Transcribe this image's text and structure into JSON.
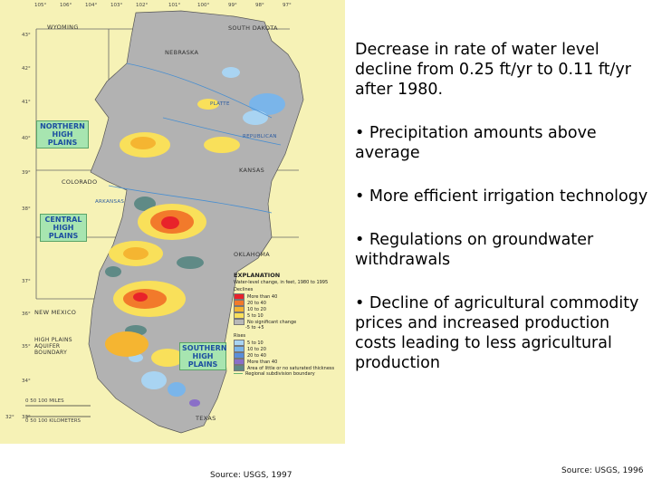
{
  "slide": {
    "paragraphs": [
      "Decrease in rate of water level decline from 0.25 ft/yr  to 0.11 ft/yr after 1980.",
      "Precipitation amounts above average",
      "More efficient irrigation technology",
      "Regulations on groundwater withdrawals",
      "Decline of agricultural commodity prices and increased production costs leading to less agricultural production"
    ],
    "source_left": "Source: USGS, 1997",
    "source_right": "Source: USGS, 1996"
  },
  "map": {
    "regions": [
      "NORTHERN HIGH PLAINS",
      "CENTRAL HIGH PLAINS",
      "SOUTHERN HIGH PLAINS"
    ],
    "states": [
      "WYOMING",
      "SOUTH DAKOTA",
      "NEBRASKA",
      "COLORADO",
      "KANSAS",
      "OKLAHOMA",
      "NEW MEXICO",
      "TEXAS"
    ],
    "rivers": [
      "PLATTE",
      "ARKANSAS",
      "REPUBLICAN"
    ],
    "boundary_label": "HIGH PLAINS AQUIFER BOUNDARY",
    "longitudes": [
      "105°",
      "106°",
      "104°",
      "103°",
      "102°",
      "101°",
      "100°",
      "99°",
      "98°",
      "97°"
    ],
    "latitudes": [
      "43°",
      "42°",
      "41°",
      "40°",
      "39°",
      "38°",
      "37°",
      "36°",
      "35°",
      "34°",
      "33°",
      "32°"
    ],
    "scale_miles": "0   50   100 MILES",
    "scale_km": "0   50   100 KILOMETERS",
    "legend": {
      "title": "EXPLANATION",
      "subtitle": "Water-level change, in feet, 1980 to 1995",
      "declines_label": "Declines",
      "declines": [
        {
          "label": "More than 40",
          "color": "#e8222a"
        },
        {
          "label": "20 to 40",
          "color": "#f27a2b"
        },
        {
          "label": "10 to 20",
          "color": "#f5b531"
        },
        {
          "label": "5 to 10",
          "color": "#f9e05a"
        }
      ],
      "no_change_label": "No significant change",
      "no_change_sub": "-5 to +5",
      "no_change_color": "#b8b8b8",
      "rises_label": "Rises",
      "rises": [
        {
          "label": "5 to 10",
          "color": "#a9d4f2"
        },
        {
          "label": "10 to 20",
          "color": "#7ab5ea"
        },
        {
          "label": "20 to 40",
          "color": "#5a8fd9"
        },
        {
          "label": "More than 40",
          "color": "#8a6fc8"
        }
      ],
      "little_label": "Area of little or no saturated thickness",
      "little_color": "#5f8a86",
      "subdivision_label": "Regional subdivision boundary"
    }
  }
}
